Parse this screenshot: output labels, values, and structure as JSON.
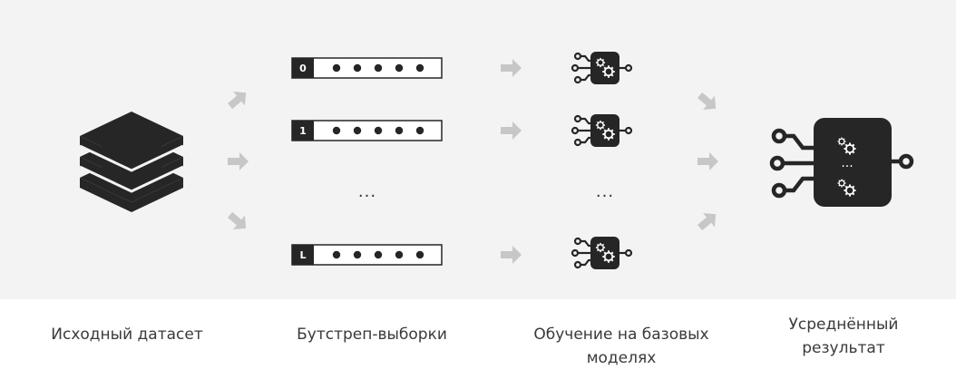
{
  "captions": {
    "dataset": "Исходный датасет",
    "bootstrap": "Бутстреп-выборки",
    "training": "Обучение на базовых моделях",
    "result": "Усреднённый результат"
  },
  "bootstrap_labels": [
    "0",
    "1",
    "L"
  ],
  "ellipsis": "...",
  "result_ellipsis": "...",
  "colors": {
    "background": "#f3f3f3",
    "icon_dark": "#262626",
    "arrow": "#c7c7c7",
    "caption_text": "#3a3a3a"
  },
  "icons": [
    "stack-layers-icon",
    "arrow-icon",
    "model-gears-icon",
    "ensemble-model-icon"
  ]
}
